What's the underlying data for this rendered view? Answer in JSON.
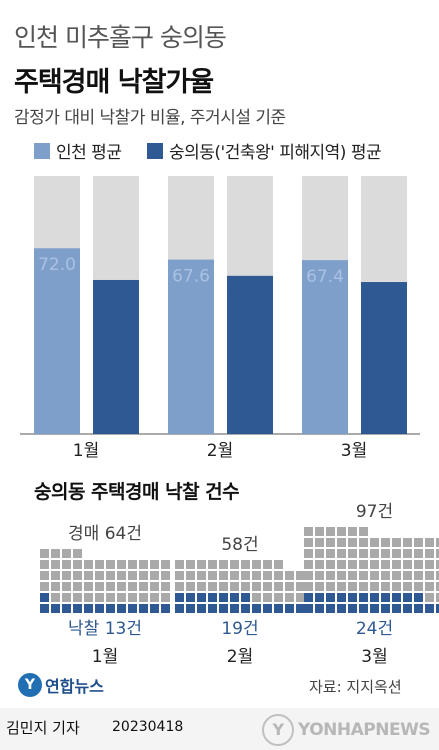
{
  "header": {
    "region": "인천 미추홀구 숭의동",
    "title": "주택경매 낙찰가율",
    "subtitle": "감정가 대비 낙찰가 비율, 주거시설 기준"
  },
  "colors": {
    "incheon": "#7f9fcb",
    "sungui": "#2f5992",
    "track": "#dbdbdb",
    "count_gray": "#a9a9a9"
  },
  "chart_data": [
    {
      "type": "bar",
      "categories": [
        "1월",
        "2월",
        "3월"
      ],
      "series": [
        {
          "name": "인천 평균",
          "values": [
            72.0,
            67.6,
            67.4
          ],
          "labels": [
            "72.0",
            "67.6",
            "67.4"
          ]
        },
        {
          "name": "숭의동('건축왕' 피해지역) 평균",
          "values": [
            59.7,
            61.3,
            58.9
          ],
          "labels": [
            "59.7",
            "61.3",
            "58.9"
          ]
        }
      ],
      "ylim": [
        0,
        100
      ],
      "legend": "top",
      "grid": false
    },
    {
      "type": "waffle",
      "title": "숭의동 주택경매 낙찰 건수",
      "categories": [
        "1월",
        "2월",
        "3월"
      ],
      "auction_counts": [
        64,
        58,
        97
      ],
      "winning_counts": [
        13,
        19,
        24
      ],
      "auction_labels": [
        "경매 64건",
        "58건",
        "97건"
      ],
      "winning_labels": [
        "낙찰 13건",
        "19건",
        "24건"
      ]
    }
  ],
  "footer": {
    "source": "자료: 지지옥션",
    "logo_text": "연합뉴스",
    "logo_mark": "Y",
    "reporter": "김민지 기자",
    "date": "20230418",
    "watermark": "YONHAPNEWS",
    "watermark_mark": "Y"
  }
}
